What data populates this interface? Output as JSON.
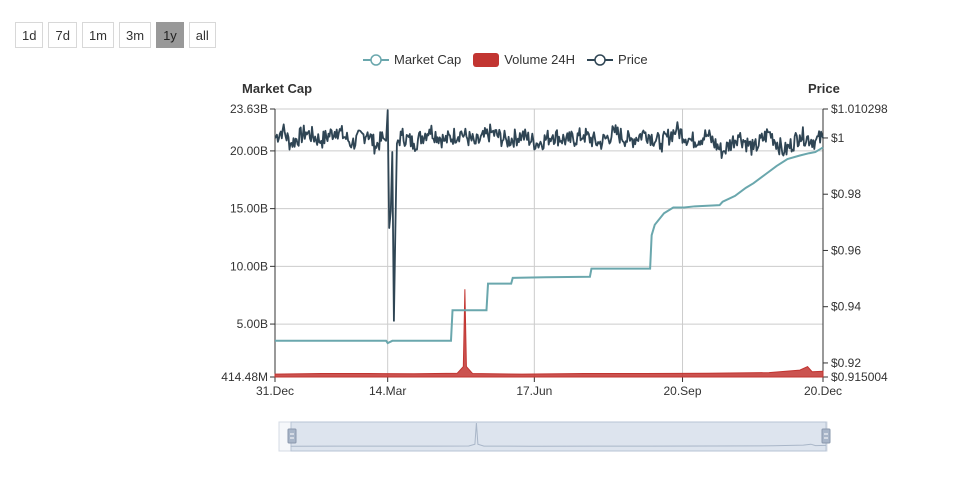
{
  "range_buttons": [
    {
      "label": "1d",
      "active": false
    },
    {
      "label": "7d",
      "active": false
    },
    {
      "label": "1m",
      "active": false
    },
    {
      "label": "3m",
      "active": false
    },
    {
      "label": "1y",
      "active": true
    },
    {
      "label": "all",
      "active": false
    }
  ],
  "legend": {
    "market_cap": "Market Cap",
    "volume": "Volume 24H",
    "price": "Price"
  },
  "colors": {
    "market_cap": "#6aa7ad",
    "volume": "#c23531",
    "price": "#2f4554",
    "grid": "#cccccc",
    "slider_fill": "#dde4ee",
    "slider_border": "#b7c3d4"
  },
  "chart_data": {
    "type": "line",
    "left_axis": {
      "title": "Market Cap",
      "min": 0.41448,
      "max": 23.63,
      "tick_values": [
        0.41448,
        5,
        10,
        15,
        20,
        23.63
      ],
      "tick_labels": [
        "414.48M",
        "5.00B",
        "10.00B",
        "15.00B",
        "20.00B",
        "23.63B"
      ]
    },
    "right_axis": {
      "title": "Price",
      "min": 0.915004,
      "max": 1.010298,
      "tick_values": [
        0.915004,
        0.92,
        0.94,
        0.96,
        0.98,
        1.0,
        1.010298
      ],
      "tick_labels": [
        "$0.915004",
        "$0.92",
        "$0.94",
        "$0.96",
        "$0.98",
        "$1",
        "$1.010298"
      ]
    },
    "x_axis": {
      "min_day": 0,
      "max_day": 355,
      "tick_days": [
        0,
        73,
        168,
        264,
        355
      ],
      "tick_labels": [
        "31.Dec",
        "14.Mar",
        "17.Jun",
        "20.Sep",
        "20.Dec"
      ]
    },
    "series": [
      {
        "name": "Market Cap",
        "unit": "B",
        "points": [
          [
            0,
            3.55
          ],
          [
            20,
            3.55
          ],
          [
            40,
            3.55
          ],
          [
            60,
            3.55
          ],
          [
            72,
            3.55
          ],
          [
            73,
            3.35
          ],
          [
            76,
            3.55
          ],
          [
            100,
            3.55
          ],
          [
            114,
            3.55
          ],
          [
            115,
            6.2
          ],
          [
            137,
            6.2
          ],
          [
            138,
            8.5
          ],
          [
            153,
            8.5
          ],
          [
            154,
            9.0
          ],
          [
            175,
            9.05
          ],
          [
            204,
            9.1
          ],
          [
            205,
            9.8
          ],
          [
            243,
            9.8
          ],
          [
            244,
            12.7
          ],
          [
            246,
            13.6
          ],
          [
            252,
            14.6
          ],
          [
            258,
            15.1
          ],
          [
            265,
            15.1
          ],
          [
            272,
            15.2
          ],
          [
            288,
            15.3
          ],
          [
            290,
            15.6
          ],
          [
            298,
            16.1
          ],
          [
            305,
            16.8
          ],
          [
            310,
            17.2
          ],
          [
            318,
            18.0
          ],
          [
            325,
            18.7
          ],
          [
            332,
            19.3
          ],
          [
            340,
            19.6
          ],
          [
            346,
            19.8
          ],
          [
            350,
            19.9
          ],
          [
            355,
            20.3
          ]
        ]
      },
      {
        "name": "Volume 24H",
        "unit": "B",
        "points": [
          [
            0,
            0.25
          ],
          [
            30,
            0.3
          ],
          [
            60,
            0.3
          ],
          [
            90,
            0.28
          ],
          [
            118,
            0.32
          ],
          [
            122,
            0.9
          ],
          [
            123,
            7.6
          ],
          [
            124,
            0.9
          ],
          [
            128,
            0.3
          ],
          [
            160,
            0.25
          ],
          [
            200,
            0.3
          ],
          [
            240,
            0.3
          ],
          [
            280,
            0.32
          ],
          [
            320,
            0.38
          ],
          [
            340,
            0.6
          ],
          [
            345,
            0.9
          ],
          [
            348,
            0.45
          ],
          [
            355,
            0.5
          ]
        ]
      },
      {
        "name": "Price",
        "unit": "$",
        "points": [
          [
            0,
            1.0
          ],
          [
            5,
            1.003
          ],
          [
            10,
            0.998
          ],
          [
            20,
            1.002
          ],
          [
            30,
            0.999
          ],
          [
            40,
            1.003
          ],
          [
            50,
            0.998
          ],
          [
            60,
            1.002
          ],
          [
            65,
            0.997
          ],
          [
            70,
            1.0
          ],
          [
            72,
            0.999
          ],
          [
            73,
            1.0099
          ],
          [
            74,
            0.968
          ],
          [
            75,
            0.974
          ],
          [
            76,
            0.995
          ],
          [
            77,
            0.935
          ],
          [
            78,
            0.968
          ],
          [
            79,
            0.998
          ],
          [
            82,
            1.001
          ],
          [
            90,
            0.998
          ],
          [
            100,
            1.003
          ],
          [
            110,
            0.999
          ],
          [
            120,
            1.002
          ],
          [
            130,
            0.998
          ],
          [
            140,
            1.002
          ],
          [
            150,
            0.999
          ],
          [
            160,
            1.001
          ],
          [
            170,
            0.998
          ],
          [
            180,
            1.001
          ],
          [
            190,
            0.999
          ],
          [
            200,
            1.001
          ],
          [
            210,
            0.998
          ],
          [
            220,
            1.002
          ],
          [
            230,
            0.999
          ],
          [
            240,
            1.002
          ],
          [
            250,
            0.998
          ],
          [
            260,
            1.003
          ],
          [
            270,
            0.999
          ],
          [
            280,
            1.001
          ],
          [
            290,
            0.995
          ],
          [
            300,
            1.001
          ],
          [
            310,
            0.996
          ],
          [
            320,
            1.002
          ],
          [
            330,
            0.995
          ],
          [
            340,
            1.001
          ],
          [
            350,
            0.999
          ],
          [
            355,
            1.0
          ]
        ]
      }
    ]
  }
}
